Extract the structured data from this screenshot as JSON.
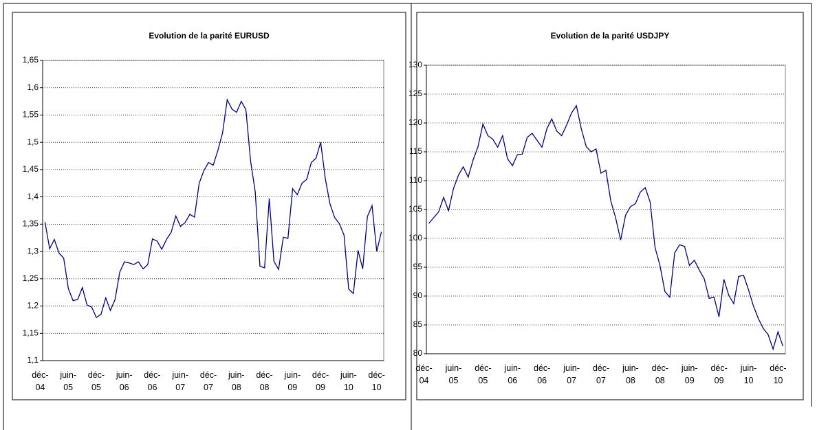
{
  "chart_data": [
    {
      "type": "line",
      "title": "Evolution de la parité EURUSD",
      "categories": [
        "déc-04",
        null,
        null,
        null,
        null,
        null,
        "juin-05",
        null,
        null,
        null,
        null,
        null,
        "déc-05",
        null,
        null,
        null,
        null,
        null,
        "juin-06",
        null,
        null,
        null,
        null,
        null,
        "déc-06",
        null,
        null,
        null,
        null,
        null,
        "juin-07",
        null,
        null,
        null,
        null,
        null,
        "déc-07",
        null,
        null,
        null,
        null,
        null,
        "juin-08",
        null,
        null,
        null,
        null,
        null,
        "déc-08",
        null,
        null,
        null,
        null,
        null,
        "juin-09",
        null,
        null,
        null,
        null,
        null,
        "déc-09",
        null,
        null,
        null,
        null,
        null,
        "juin-10",
        null,
        null,
        null,
        null,
        null,
        "déc-10"
      ],
      "values": [
        1.354,
        1.305,
        1.322,
        1.297,
        1.288,
        1.232,
        1.21,
        1.212,
        1.234,
        1.202,
        1.198,
        1.179,
        1.185,
        1.215,
        1.192,
        1.212,
        1.262,
        1.281,
        1.279,
        1.276,
        1.281,
        1.268,
        1.276,
        1.323,
        1.319,
        1.304,
        1.322,
        1.335,
        1.365,
        1.346,
        1.353,
        1.368,
        1.363,
        1.425,
        1.448,
        1.463,
        1.458,
        1.485,
        1.517,
        1.578,
        1.561,
        1.555,
        1.575,
        1.56,
        1.466,
        1.409,
        1.273,
        1.27,
        1.397,
        1.282,
        1.267,
        1.326,
        1.324,
        1.415,
        1.404,
        1.425,
        1.432,
        1.463,
        1.471,
        1.5,
        1.433,
        1.387,
        1.362,
        1.351,
        1.33,
        1.231,
        1.223,
        1.302,
        1.268,
        1.364,
        1.384,
        1.3,
        1.336
      ],
      "color": "#000080",
      "ylim": [
        1.1,
        1.65
      ],
      "yticks": [
        {
          "value": 1.1,
          "label": "1,1"
        },
        {
          "value": 1.15,
          "label": "1,15"
        },
        {
          "value": 1.2,
          "label": "1,2"
        },
        {
          "value": 1.25,
          "label": "1,25"
        },
        {
          "value": 1.3,
          "label": "1,3"
        },
        {
          "value": 1.35,
          "label": "1,35"
        },
        {
          "value": 1.4,
          "label": "1,4"
        },
        {
          "value": 1.45,
          "label": "1,45"
        },
        {
          "value": 1.5,
          "label": "1,5"
        },
        {
          "value": 1.55,
          "label": "1,55"
        },
        {
          "value": 1.6,
          "label": "1,6"
        },
        {
          "value": 1.65,
          "label": "1,65"
        }
      ],
      "grid": true
    },
    {
      "type": "line",
      "title": "Evolution de la parité USDJPY",
      "categories": [
        "déc-04",
        null,
        null,
        null,
        null,
        null,
        "juin-05",
        null,
        null,
        null,
        null,
        null,
        "déc-05",
        null,
        null,
        null,
        null,
        null,
        "juin-06",
        null,
        null,
        null,
        null,
        null,
        "déc-06",
        null,
        null,
        null,
        null,
        null,
        "juin-07",
        null,
        null,
        null,
        null,
        null,
        "déc-07",
        null,
        null,
        null,
        null,
        null,
        "juin-08",
        null,
        null,
        null,
        null,
        null,
        "déc-08",
        null,
        null,
        null,
        null,
        null,
        "juin-09",
        null,
        null,
        null,
        null,
        null,
        "déc-09",
        null,
        null,
        null,
        null,
        null,
        "juin-10",
        null,
        null,
        null,
        null,
        null,
        "déc-10"
      ],
      "values": [
        102.6,
        103.6,
        104.6,
        107.1,
        104.8,
        108.6,
        110.9,
        112.4,
        110.6,
        113.6,
        115.9,
        119.8,
        117.8,
        117.2,
        115.8,
        117.8,
        113.8,
        112.6,
        114.5,
        114.6,
        117.5,
        118.2,
        117.0,
        115.8,
        119.0,
        120.7,
        118.6,
        117.8,
        119.6,
        121.7,
        123.0,
        119.0,
        115.9,
        115.0,
        115.5,
        111.3,
        111.8,
        106.5,
        103.5,
        99.7,
        104.0,
        105.5,
        106.0,
        108.0,
        108.8,
        106.3,
        98.4,
        95.3,
        90.8,
        89.8,
        97.5,
        98.9,
        98.6,
        95.3,
        96.2,
        94.5,
        93.0,
        89.6,
        89.8,
        86.4,
        92.9,
        90.1,
        88.7,
        93.4,
        93.6,
        91.1,
        88.3,
        86.1,
        84.4,
        83.3,
        80.8,
        83.8,
        81.3
      ],
      "color": "#000080",
      "ylim": [
        80,
        130
      ],
      "yticks": [
        80,
        85,
        90,
        95,
        100,
        105,
        110,
        115,
        120,
        125,
        130
      ],
      "grid": true
    }
  ]
}
